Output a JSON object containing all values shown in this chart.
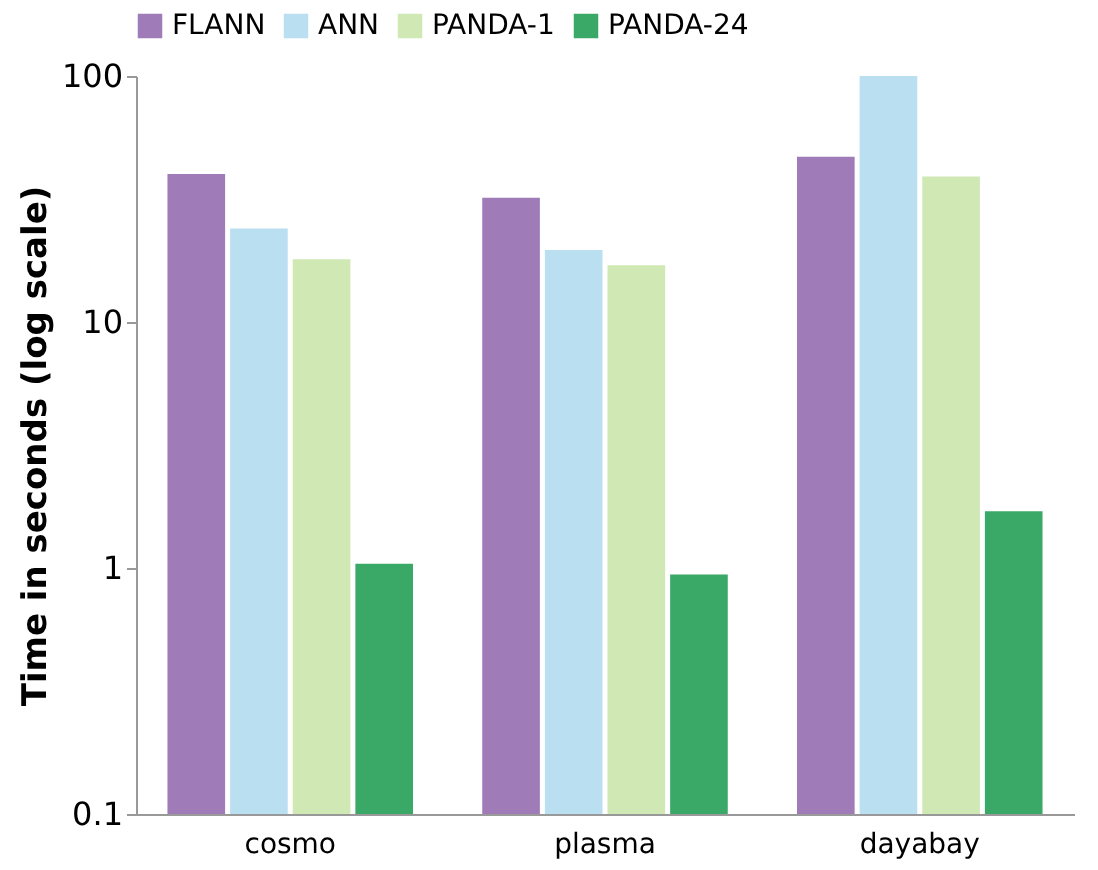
{
  "chart_data": {
    "type": "bar",
    "ylabel": "Time in seconds (log scale)",
    "categories": [
      "cosmo",
      "plasma",
      "dayabay"
    ],
    "series": [
      {
        "name": "FLANN",
        "color": "#9f7bb8",
        "values": [
          40,
          32,
          47
        ]
      },
      {
        "name": "ANN",
        "color": "#b9dff0",
        "values": [
          24,
          19.6,
          100
        ]
      },
      {
        "name": "PANDA-1",
        "color": "#cfe8b4",
        "values": [
          18,
          17,
          39
        ]
      },
      {
        "name": "PANDA-24",
        "color": "#3aa866",
        "values": [
          1.04,
          0.94,
          1.7
        ]
      }
    ],
    "log": true,
    "ylim": [
      0.1,
      100
    ],
    "yticks": [
      0.1,
      1,
      10,
      100
    ],
    "legend": "top",
    "grid": false
  }
}
